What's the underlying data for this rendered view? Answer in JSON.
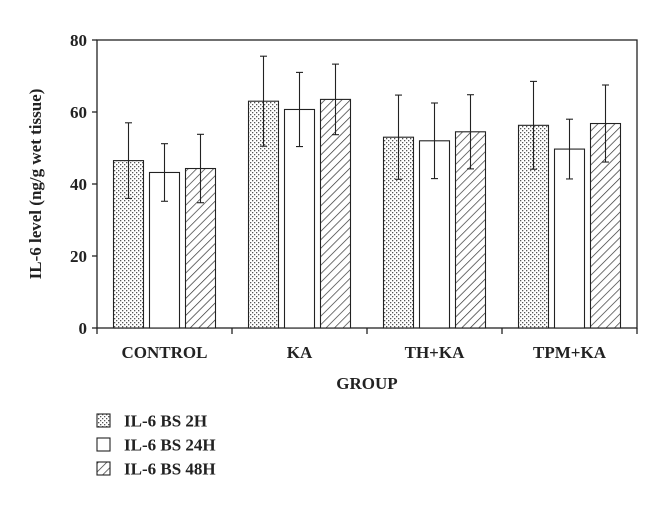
{
  "chart_data": {
    "type": "bar",
    "xlabel": "GROUP",
    "ylabel": "IL-6 level (ng/g wet tissue)",
    "ylim": [
      0,
      80
    ],
    "yticks": [
      0,
      20,
      40,
      60,
      80
    ],
    "categories": [
      "CONTROL",
      "KA",
      "TH+KA",
      "TPM+KA"
    ],
    "series": [
      {
        "name": "IL-6 BS 2H",
        "pattern": "dots",
        "values": [
          46.5,
          63.0,
          53.0,
          56.3
        ],
        "error": [
          10.5,
          12.5,
          11.7,
          12.2
        ]
      },
      {
        "name": "IL-6 BS 24H",
        "pattern": "plain",
        "values": [
          43.2,
          60.7,
          52.0,
          49.7
        ],
        "error": [
          8.0,
          10.3,
          10.5,
          8.3
        ]
      },
      {
        "name": "IL-6 BS 48H",
        "pattern": "hatch",
        "values": [
          44.3,
          63.5,
          54.5,
          56.8
        ],
        "error": [
          9.5,
          9.8,
          10.3,
          10.7
        ]
      }
    ],
    "legend_position": "bottom-left",
    "grid": false
  }
}
